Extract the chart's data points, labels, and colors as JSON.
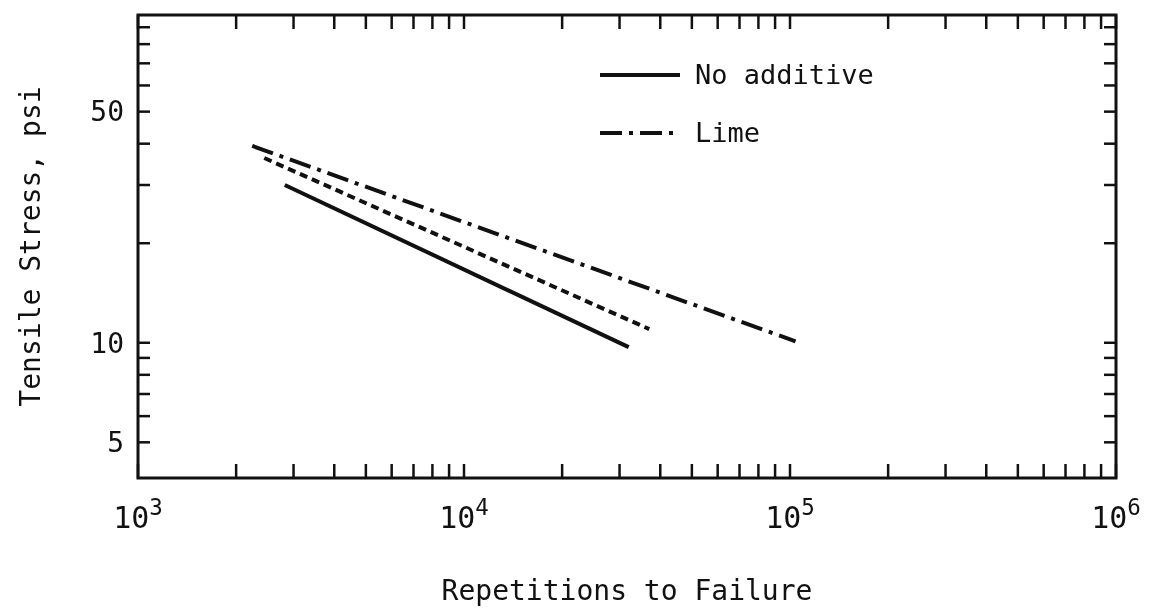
{
  "chart_data": {
    "type": "line",
    "xlabel": "Repetitions to Failure",
    "ylabel": "Tensile Stress, psi",
    "log": "xy",
    "grid": false,
    "legend": "top right",
    "xlim": [
      1000,
      1000000
    ],
    "ylim": [
      3.9,
      98
    ],
    "xticks": [
      {
        "value": 1000,
        "label": "10$^{3}$"
      },
      {
        "value": 2000,
        "label": null
      },
      {
        "value": 3000,
        "label": null
      },
      {
        "value": 4000,
        "label": null
      },
      {
        "value": 5000,
        "label": null
      },
      {
        "value": 6000,
        "label": null
      },
      {
        "value": 7000,
        "label": null
      },
      {
        "value": 8000,
        "label": null
      },
      {
        "value": 9000,
        "label": null
      },
      {
        "value": 10000,
        "label": "10$^{4}$"
      },
      {
        "value": 20000,
        "label": null
      },
      {
        "value": 30000,
        "label": null
      },
      {
        "value": 40000,
        "label": null
      },
      {
        "value": 50000,
        "label": null
      },
      {
        "value": 60000,
        "label": null
      },
      {
        "value": 70000,
        "label": null
      },
      {
        "value": 80000,
        "label": null
      },
      {
        "value": 90000,
        "label": null
      },
      {
        "value": 100000,
        "label": "10$^{5}$"
      },
      {
        "value": 200000,
        "label": null
      },
      {
        "value": 300000,
        "label": null
      },
      {
        "value": 400000,
        "label": null
      },
      {
        "value": 500000,
        "label": null
      },
      {
        "value": 600000,
        "label": null
      },
      {
        "value": 700000,
        "label": null
      },
      {
        "value": 800000,
        "label": null
      },
      {
        "value": 900000,
        "label": null
      },
      {
        "value": 1000000,
        "label": "10$^{6}$"
      }
    ],
    "yticks": [
      5,
      {
        "value": 6,
        "label": null
      },
      {
        "value": 7,
        "label": null
      },
      {
        "value": 8,
        "label": null
      },
      {
        "value": 9,
        "label": null
      },
      10,
      {
        "value": 20,
        "label": null
      },
      {
        "value": 30,
        "label": null
      },
      {
        "value": 40,
        "label": null
      },
      50,
      {
        "value": 60,
        "label": null
      },
      {
        "value": 70,
        "label": null
      },
      {
        "value": 80,
        "label": null
      },
      {
        "value": 90,
        "label": null
      }
    ],
    "series": [
      {
        "name": "No additive",
        "color": "#111111",
        "line_style": "solid",
        "x": [
          2820,
          32000
        ],
        "values": [
          30.0,
          9.7
        ]
      },
      {
        "name": "Lime",
        "color": "#111111",
        "line_style": "dashed",
        "x": [
          2240,
          104000
        ],
        "values": [
          39.4,
          10.1
        ]
      },
      {
        "color": "#111111",
        "line_style": "dotted",
        "x": [
          2440,
          37000
        ],
        "values": [
          36.2,
          11.0
        ]
      }
    ]
  }
}
